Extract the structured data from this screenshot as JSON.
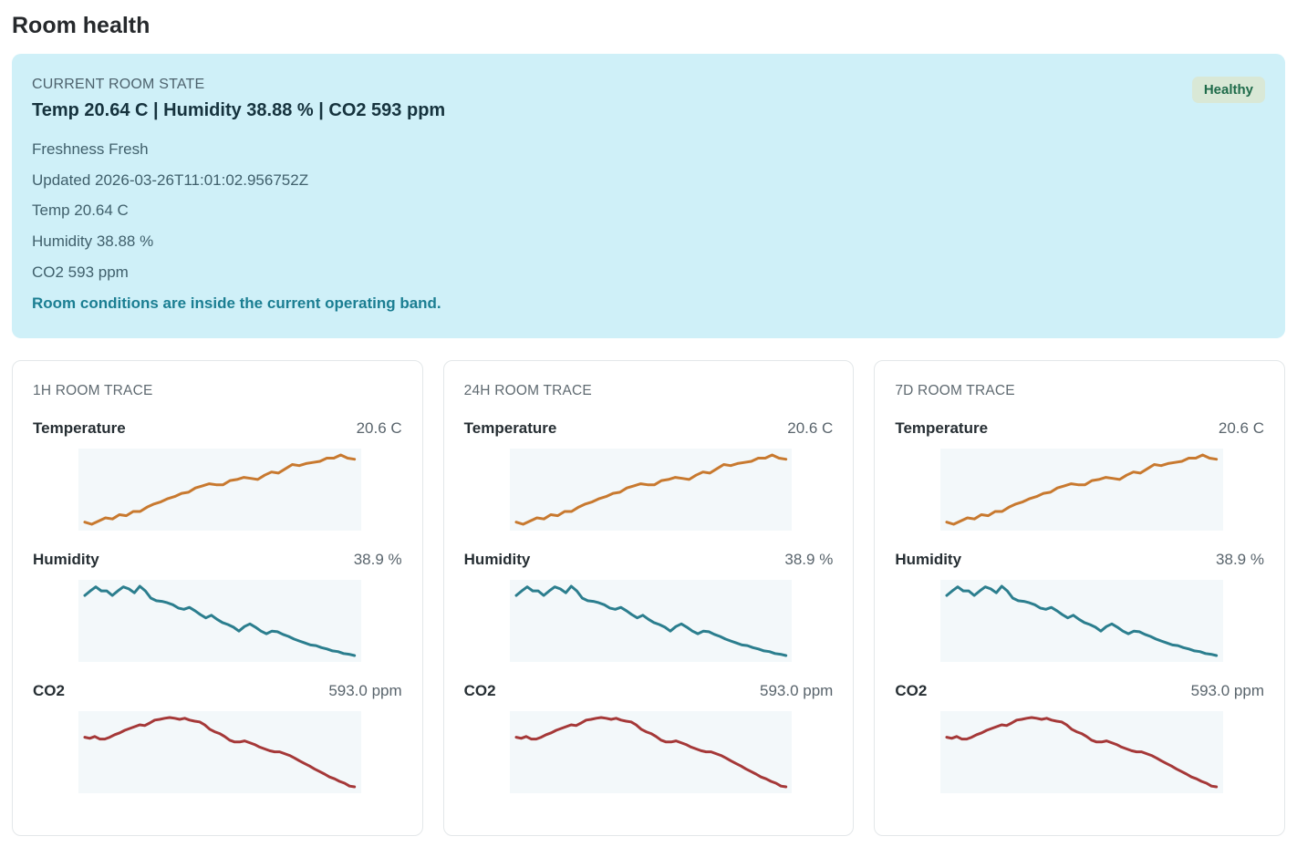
{
  "page": {
    "title": "Room health"
  },
  "state": {
    "heading": "CURRENT ROOM STATE",
    "summary": "Temp 20.64 C | Humidity 38.88 % | CO2 593 ppm",
    "status": "Healthy",
    "lines": [
      "Freshness Fresh",
      "Updated 2026-03-26T11:01:02.956752Z",
      "Temp 20.64 C",
      "Humidity 38.88 %",
      "CO2 593 ppm"
    ],
    "note": "Room conditions are inside the current operating band."
  },
  "cards": [
    {
      "title": "1H ROOM TRACE"
    },
    {
      "title": "24H ROOM TRACE"
    },
    {
      "title": "7D ROOM TRACE"
    }
  ],
  "colors": {
    "state_card_bg": "#cff0f8",
    "badge_bg": "#d9e8d6",
    "badge_text": "#1f6b4a",
    "note_text": "#1b7e92",
    "spark_bg": "#f3f8fa",
    "temperature_line": "#c8792f",
    "humidity_line": "#2b7e8e",
    "co2_line": "#a53838"
  },
  "chart_data": {
    "type": "line",
    "charts": [
      "1H ROOM TRACE",
      "24H ROOM TRACE",
      "7D ROOM TRACE"
    ],
    "legend_position": "none",
    "grid": false,
    "sparklines": [
      {
        "label": "Temperature",
        "current": "20.6 C",
        "unit": "C",
        "color": "#c8792f",
        "values": [
          20.02,
          20.0,
          20.03,
          20.06,
          20.05,
          20.09,
          20.08,
          20.12,
          20.12,
          20.16,
          20.19,
          20.21,
          20.24,
          20.26,
          20.29,
          20.3,
          20.34,
          20.36,
          20.38,
          20.37,
          20.37,
          20.41,
          20.42,
          20.44,
          20.43,
          20.42,
          20.46,
          20.49,
          20.48,
          20.52,
          20.56,
          20.55,
          20.57,
          20.58,
          20.59,
          20.62,
          20.62,
          20.65,
          20.62,
          20.61
        ]
      },
      {
        "label": "Humidity",
        "current": "38.9 %",
        "unit": "%",
        "color": "#2b7e8e",
        "values": [
          39.76,
          39.83,
          39.89,
          39.83,
          39.83,
          39.76,
          39.83,
          39.89,
          39.86,
          39.8,
          39.9,
          39.83,
          39.72,
          39.68,
          39.67,
          39.65,
          39.62,
          39.57,
          39.55,
          39.58,
          39.53,
          39.47,
          39.42,
          39.46,
          39.4,
          39.35,
          39.32,
          39.28,
          39.22,
          39.29,
          39.33,
          39.28,
          39.22,
          39.18,
          39.22,
          39.21,
          39.17,
          39.14,
          39.1,
          39.07,
          39.04,
          39.01,
          39.0,
          38.97,
          38.95,
          38.92,
          38.91,
          38.88,
          38.87,
          38.85
        ]
      },
      {
        "label": "CO2",
        "current": "593.0 ppm",
        "unit": "ppm",
        "color": "#a53838",
        "values": [
          606.6,
          606.3,
          606.8,
          606.1,
          606.1,
          606.6,
          607.3,
          607.8,
          608.5,
          609.0,
          609.5,
          610.0,
          609.8,
          610.5,
          611.3,
          611.5,
          611.8,
          612.0,
          611.8,
          611.5,
          611.8,
          611.3,
          611.0,
          610.8,
          610.0,
          608.8,
          608.1,
          607.6,
          606.8,
          605.8,
          605.3,
          605.3,
          605.6,
          605.1,
          604.6,
          603.9,
          603.4,
          602.9,
          602.6,
          602.6,
          602.1,
          601.6,
          600.9,
          600.1,
          599.4,
          598.7,
          597.9,
          597.2,
          596.5,
          595.7,
          595.2,
          594.5,
          594.0,
          593.2,
          593.0
        ]
      }
    ]
  }
}
